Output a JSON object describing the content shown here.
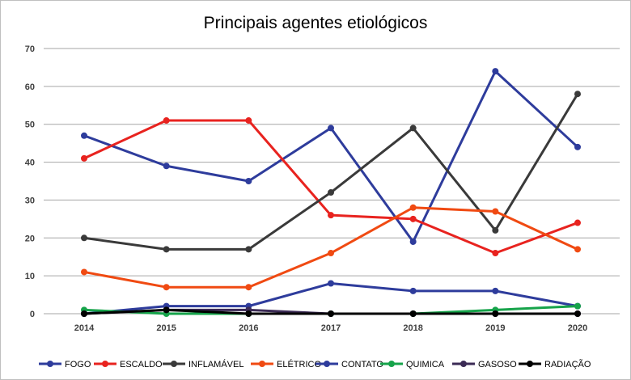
{
  "chart_data": {
    "type": "line",
    "title": "Principais agentes etiológicos",
    "xlabel": "",
    "ylabel": "",
    "categories": [
      "2014",
      "2015",
      "2016",
      "2017",
      "2018",
      "2019",
      "2020"
    ],
    "ylim": [
      0,
      70
    ],
    "yticks": [
      0,
      10,
      20,
      30,
      40,
      50,
      60,
      70
    ],
    "grid": true,
    "legend_position": "bottom",
    "series": [
      {
        "name": "FOGO",
        "color": "#2e3c9c",
        "values": [
          47,
          39,
          35,
          49,
          19,
          64,
          44
        ]
      },
      {
        "name": "ESCALDO",
        "color": "#e8231f",
        "values": [
          41,
          51,
          51,
          26,
          25,
          16,
          24
        ]
      },
      {
        "name": "INFLAMÁVEL",
        "color": "#3a3a3a",
        "values": [
          20,
          17,
          17,
          32,
          49,
          22,
          58
        ]
      },
      {
        "name": "ELÉTRICO",
        "color": "#f04a12",
        "values": [
          11,
          7,
          7,
          16,
          28,
          27,
          17
        ]
      },
      {
        "name": "CONTATO",
        "color": "#2e3c9c",
        "values": [
          0,
          2,
          2,
          8,
          6,
          6,
          2
        ]
      },
      {
        "name": "QUIMICA",
        "color": "#16a34a",
        "values": [
          1,
          0,
          0,
          0,
          0,
          1,
          2
        ]
      },
      {
        "name": "GASOSO",
        "color": "#3b2a55",
        "values": [
          0,
          1,
          1,
          0,
          0,
          0,
          0
        ]
      },
      {
        "name": "RADIAÇÃO",
        "color": "#000000",
        "values": [
          0,
          1,
          0,
          0,
          0,
          0,
          0
        ]
      }
    ]
  }
}
